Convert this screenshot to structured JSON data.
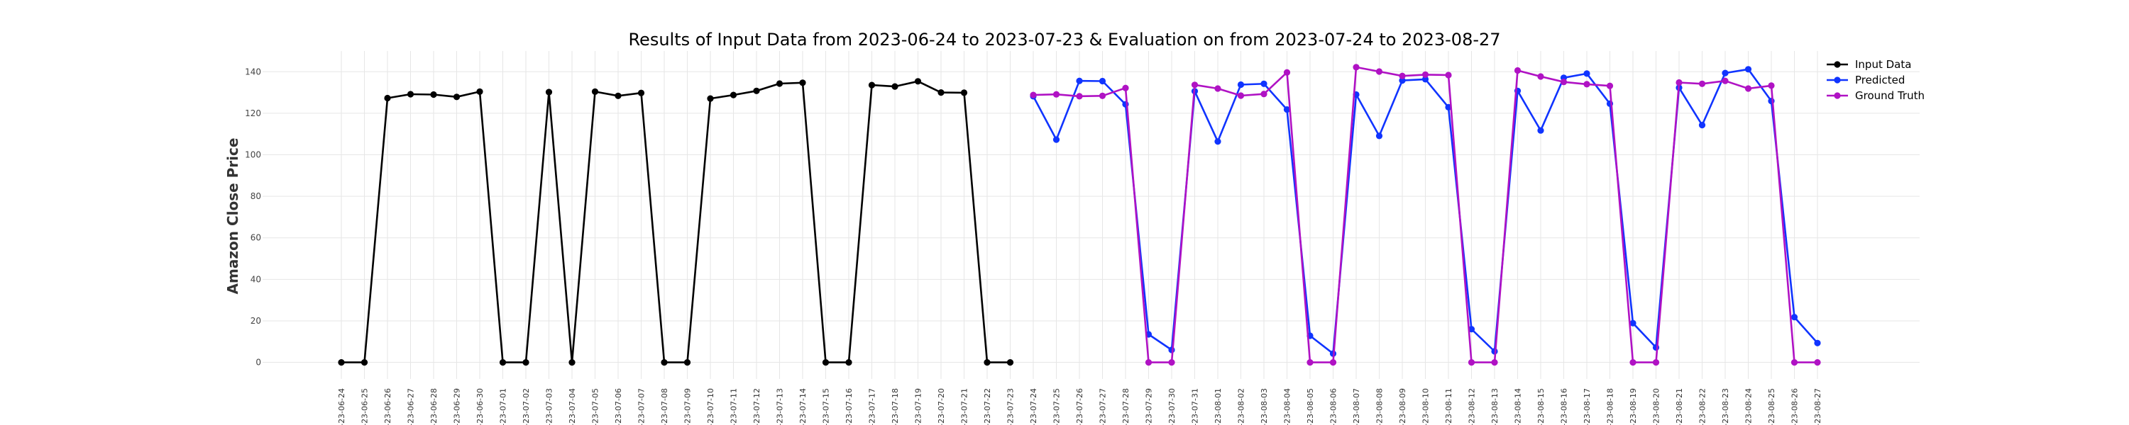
{
  "chart_data": {
    "type": "line",
    "title": "Results of Input Data from 2023-06-24 to 2023-07-23 & Evaluation on from 2023-07-24 to 2023-08-27",
    "xlabel": "",
    "ylabel": "Amazon Close Price",
    "ylim": [
      -8,
      150
    ],
    "yticks": [
      0,
      20,
      40,
      60,
      80,
      100,
      120,
      140
    ],
    "grid": true,
    "legend_position": "top-right",
    "categories": [
      "2023-06-24",
      "2023-06-25",
      "2023-06-26",
      "2023-06-27",
      "2023-06-28",
      "2023-06-29",
      "2023-06-30",
      "2023-07-01",
      "2023-07-02",
      "2023-07-03",
      "2023-07-04",
      "2023-07-05",
      "2023-07-06",
      "2023-07-07",
      "2023-07-08",
      "2023-07-09",
      "2023-07-10",
      "2023-07-11",
      "2023-07-12",
      "2023-07-13",
      "2023-07-14",
      "2023-07-15",
      "2023-07-16",
      "2023-07-17",
      "2023-07-18",
      "2023-07-19",
      "2023-07-20",
      "2023-07-21",
      "2023-07-22",
      "2023-07-23",
      "2023-07-24",
      "2023-07-25",
      "2023-07-26",
      "2023-07-27",
      "2023-07-28",
      "2023-07-29",
      "2023-07-30",
      "2023-07-31",
      "2023-08-01",
      "2023-08-02",
      "2023-08-03",
      "2023-08-04",
      "2023-08-05",
      "2023-08-06",
      "2023-08-07",
      "2023-08-08",
      "2023-08-09",
      "2023-08-10",
      "2023-08-11",
      "2023-08-12",
      "2023-08-13",
      "2023-08-14",
      "2023-08-15",
      "2023-08-16",
      "2023-08-17",
      "2023-08-18",
      "2023-08-19",
      "2023-08-20",
      "2023-08-21",
      "2023-08-22",
      "2023-08-23",
      "2023-08-24",
      "2023-08-25",
      "2023-08-26",
      "2023-08-27"
    ],
    "tick_labels": [
      "-23-06-24",
      "-23-06-25",
      "-23-06-26",
      "-23-06-27",
      "-23-06-28",
      "-23-06-29",
      "-23-06-30",
      "-23-07-01",
      "-23-07-02",
      "-23-07-03",
      "-23-07-04",
      "-23-07-05",
      "-23-07-06",
      "-23-07-07",
      "-23-07-08",
      "-23-07-09",
      "-23-07-10",
      "-23-07-11",
      "-23-07-12",
      "-23-07-13",
      "-23-07-14",
      "-23-07-15",
      "-23-07-16",
      "-23-07-17",
      "-23-07-18",
      "-23-07-19",
      "-23-07-20",
      "-23-07-21",
      "-23-07-22",
      "-23-07-23",
      "-23-07-24",
      "-23-07-25",
      "-23-07-26",
      "-23-07-27",
      "-23-07-28",
      "-23-07-29",
      "-23-07-30",
      "-23-07-31",
      "-23-08-01",
      "-23-08-02",
      "-23-08-03",
      "-23-08-04",
      "-23-08-05",
      "-23-08-06",
      "-23-08-07",
      "-23-08-08",
      "-23-08-09",
      "-23-08-10",
      "-23-08-11",
      "-23-08-12",
      "-23-08-13",
      "-23-08-14",
      "-23-08-15",
      "-23-08-16",
      "-23-08-17",
      "-23-08-18",
      "-23-08-19",
      "-23-08-20",
      "-23-08-21",
      "-23-08-22",
      "-23-08-23",
      "-23-08-24",
      "-23-08-25",
      "-23-08-26",
      "-23-08-27"
    ],
    "series": [
      {
        "name": "Input Data",
        "color": "#000000",
        "x": [
          "2023-06-24",
          "2023-06-25",
          "2023-06-26",
          "2023-06-27",
          "2023-06-28",
          "2023-06-29",
          "2023-06-30",
          "2023-07-01",
          "2023-07-02",
          "2023-07-03",
          "2023-07-04",
          "2023-07-05",
          "2023-07-06",
          "2023-07-07",
          "2023-07-08",
          "2023-07-09",
          "2023-07-10",
          "2023-07-11",
          "2023-07-12",
          "2023-07-13",
          "2023-07-14",
          "2023-07-15",
          "2023-07-16",
          "2023-07-17",
          "2023-07-18",
          "2023-07-19",
          "2023-07-20",
          "2023-07-21",
          "2023-07-22",
          "2023-07-23"
        ],
        "values": [
          0,
          0,
          127.3,
          129.2,
          129.0,
          127.9,
          130.4,
          0,
          0,
          130.2,
          0,
          130.4,
          128.4,
          129.8,
          0,
          0,
          127.1,
          128.8,
          130.8,
          134.3,
          134.7,
          0,
          0,
          133.6,
          132.9,
          135.4,
          130.0,
          129.9,
          0,
          0
        ]
      },
      {
        "name": "Predicted",
        "color": "#1034ff",
        "x": [
          "2023-07-24",
          "2023-07-25",
          "2023-07-26",
          "2023-07-27",
          "2023-07-28",
          "2023-07-29",
          "2023-07-30",
          "2023-07-31",
          "2023-08-01",
          "2023-08-02",
          "2023-08-03",
          "2023-08-04",
          "2023-08-05",
          "2023-08-06",
          "2023-08-07",
          "2023-08-08",
          "2023-08-09",
          "2023-08-10",
          "2023-08-11",
          "2023-08-12",
          "2023-08-13",
          "2023-08-14",
          "2023-08-15",
          "2023-08-16",
          "2023-08-17",
          "2023-08-18",
          "2023-08-19",
          "2023-08-20",
          "2023-08-21",
          "2023-08-22",
          "2023-08-23",
          "2023-08-24",
          "2023-08-25",
          "2023-08-26",
          "2023-08-27"
        ],
        "values": [
          128.2,
          107.3,
          135.6,
          135.5,
          124.3,
          13.5,
          6.0,
          130.6,
          106.4,
          133.8,
          134.2,
          121.8,
          12.8,
          4.2,
          129.0,
          109.1,
          135.8,
          136.4,
          122.9,
          16.0,
          5.3,
          130.8,
          111.7,
          137.1,
          139.1,
          124.6,
          18.9,
          7.2,
          132.3,
          114.3,
          139.4,
          141.2,
          125.9,
          21.8,
          9.3
        ]
      },
      {
        "name": "Ground Truth",
        "color": "#b012c4",
        "x": [
          "2023-07-24",
          "2023-07-25",
          "2023-07-26",
          "2023-07-27",
          "2023-07-28",
          "2023-07-29",
          "2023-07-30",
          "2023-07-31",
          "2023-08-01",
          "2023-08-02",
          "2023-08-03",
          "2023-08-04",
          "2023-08-05",
          "2023-08-06",
          "2023-08-07",
          "2023-08-08",
          "2023-08-09",
          "2023-08-10",
          "2023-08-11",
          "2023-08-12",
          "2023-08-13",
          "2023-08-14",
          "2023-08-15",
          "2023-08-16",
          "2023-08-17",
          "2023-08-18",
          "2023-08-19",
          "2023-08-20",
          "2023-08-21",
          "2023-08-22",
          "2023-08-23",
          "2023-08-24",
          "2023-08-25",
          "2023-08-26",
          "2023-08-27"
        ],
        "values": [
          128.8,
          129.1,
          128.2,
          128.4,
          132.2,
          0,
          0,
          133.7,
          131.9,
          128.5,
          129.3,
          139.7,
          0,
          0,
          142.2,
          140.1,
          138.0,
          138.6,
          138.4,
          0,
          0,
          140.6,
          137.7,
          135.1,
          134.0,
          133.2,
          0,
          0,
          134.8,
          134.2,
          135.6,
          131.9,
          133.3,
          0,
          0
        ]
      }
    ]
  }
}
